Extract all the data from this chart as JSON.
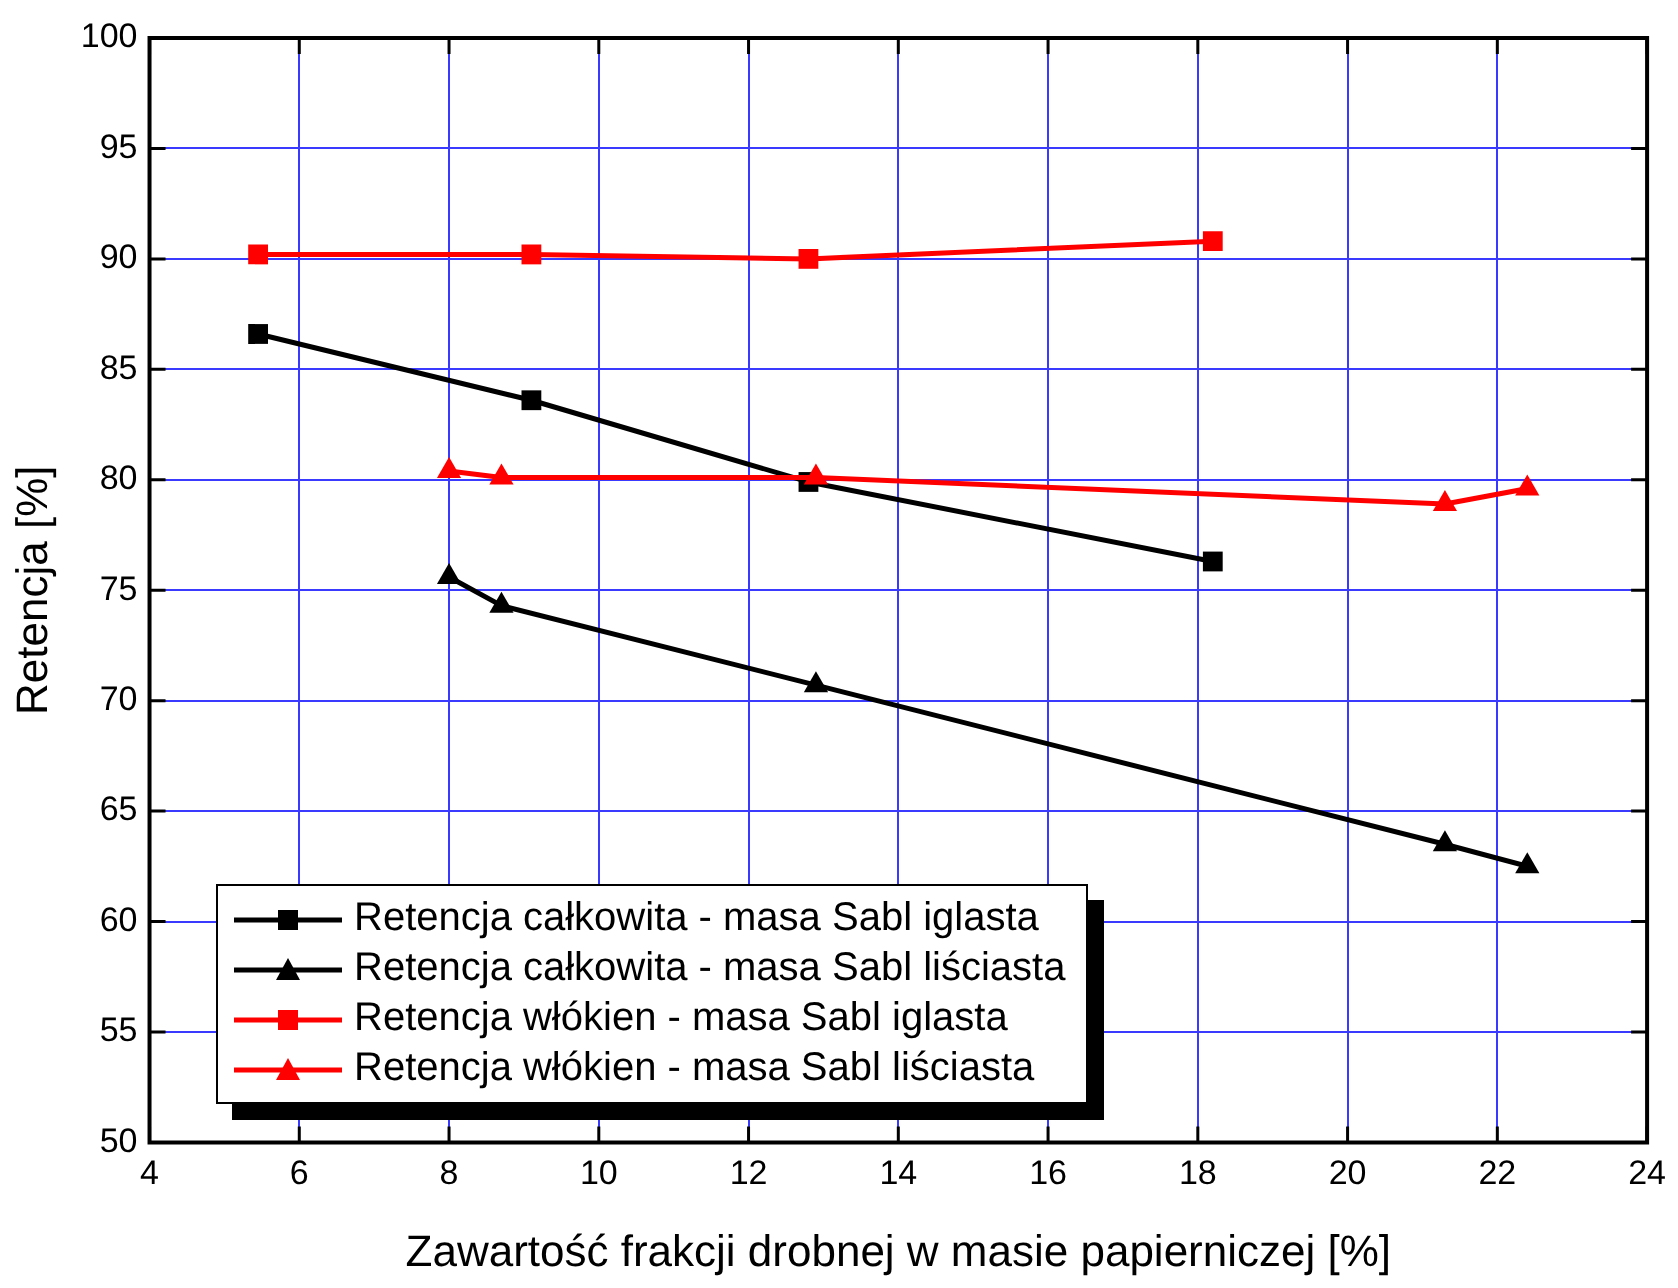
{
  "chart_data": {
    "type": "line",
    "xlabel": "Zawartość frakcji drobnej w masie papierniczej [%]",
    "ylabel": "Retencja [%]",
    "xlim": [
      4,
      24
    ],
    "xticks": [
      4,
      6,
      8,
      10,
      12,
      14,
      16,
      18,
      20,
      22,
      24
    ],
    "ylim": [
      50,
      100
    ],
    "yticks": [
      50,
      55,
      60,
      65,
      70,
      75,
      80,
      85,
      90,
      95,
      100
    ],
    "grid": true,
    "legend": "bottom left",
    "line_style": "solid",
    "series": [
      {
        "name": "Retencja całkowita - masa Sabl iglasta",
        "color": "#000000",
        "marker": "square",
        "x": [
          5.45,
          9.1,
          12.8,
          18.2
        ],
        "values": [
          86.6,
          83.6,
          79.9,
          76.3
        ]
      },
      {
        "name": "Retencja całkowita - masa Sabl liściasta",
        "color": "#000000",
        "marker": "triangle",
        "x": [
          8.0,
          8.7,
          12.9,
          21.3,
          22.4
        ],
        "values": [
          75.6,
          74.3,
          70.7,
          63.5,
          62.5
        ]
      },
      {
        "name": "Retencja włókien - masa Sabl iglasta",
        "color": "#ff0000",
        "marker": "square",
        "x": [
          5.45,
          9.1,
          12.8,
          18.2
        ],
        "values": [
          90.2,
          90.2,
          90.0,
          90.8
        ]
      },
      {
        "name": "Retencja włókien - masa Sabl liściasta",
        "color": "#ff0000",
        "marker": "triangle",
        "x": [
          8.0,
          8.7,
          12.9,
          21.3,
          22.4
        ],
        "values": [
          80.4,
          80.1,
          80.1,
          78.9,
          79.6
        ]
      }
    ]
  }
}
